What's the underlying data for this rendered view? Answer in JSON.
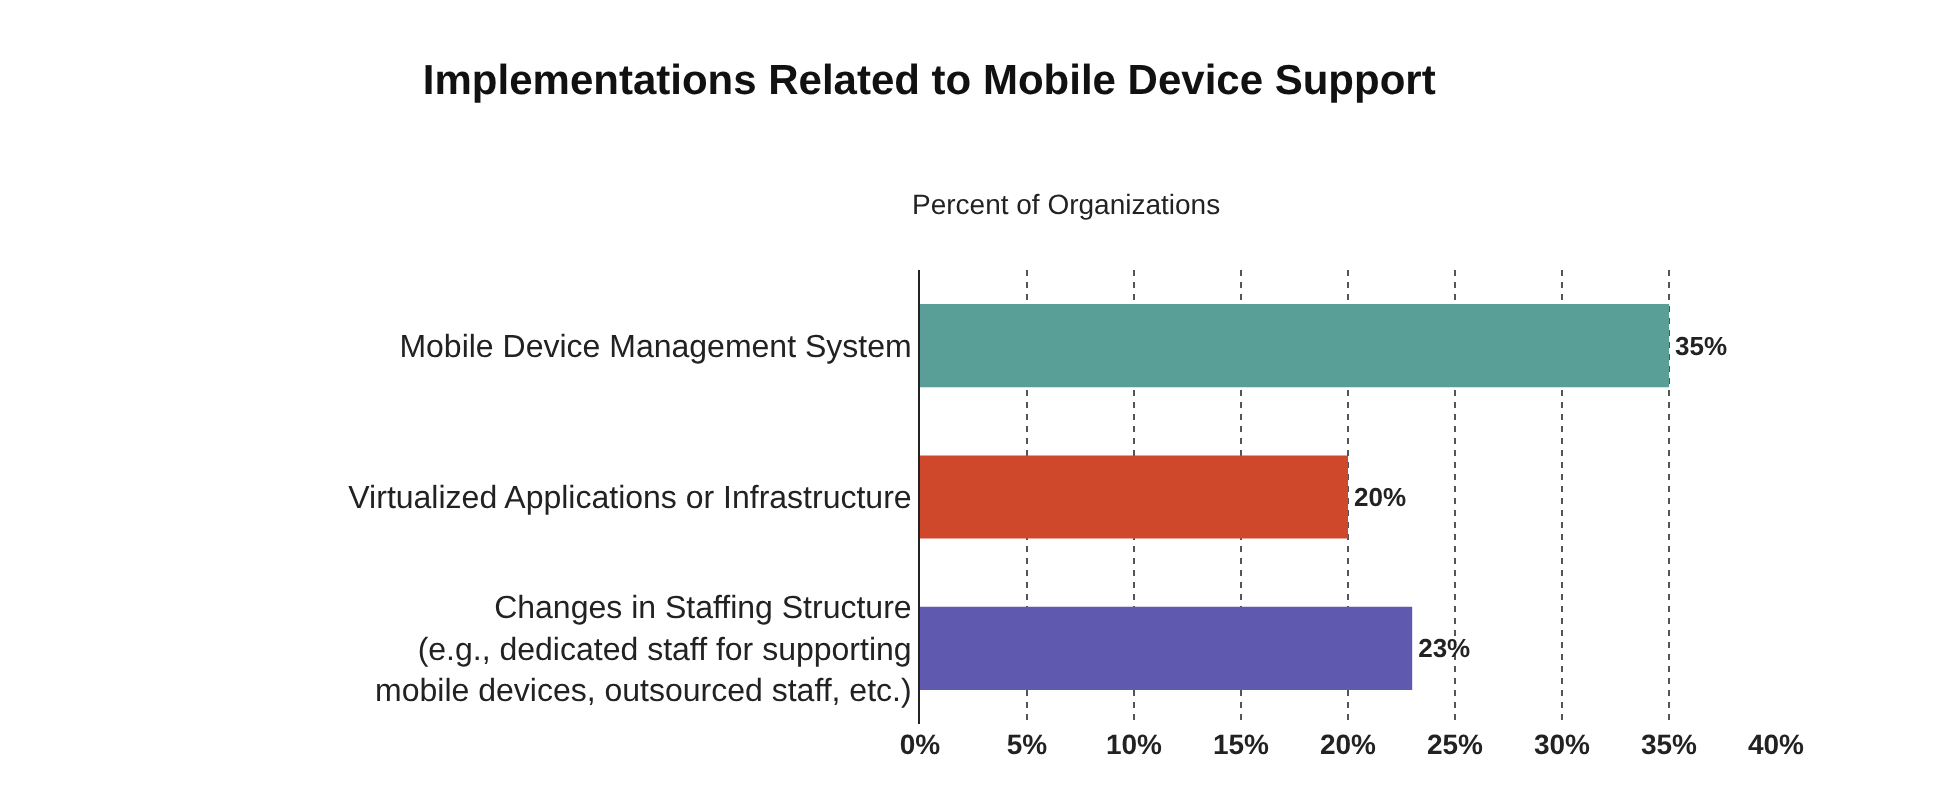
{
  "chart_data": {
    "type": "bar",
    "orientation": "horizontal",
    "title": "Implementations Related to Mobile Device Support",
    "subtitle": "Percent of Organizations",
    "categories": [
      "Mobile Device Management System",
      "Virtualized Applications or Infrastructure",
      "Changes in Staffing Structure\n(e.g., dedicated staff for supporting\nmobile devices, outsourced staff, etc.)"
    ],
    "values": [
      35,
      20,
      23
    ],
    "colors": [
      "#5a9e98",
      "#d0482c",
      "#5f5ab0"
    ],
    "value_labels": [
      "35%",
      "20%",
      "23%"
    ],
    "xlim": [
      0,
      40
    ],
    "xticks": [
      {
        "value": 0,
        "label": "0%"
      },
      {
        "value": 5,
        "label": "5%"
      },
      {
        "value": 10,
        "label": "10%"
      },
      {
        "value": 15,
        "label": "15%"
      },
      {
        "value": 20,
        "label": "20%"
      },
      {
        "value": 25,
        "label": "25%"
      },
      {
        "value": 30,
        "label": "30%"
      },
      {
        "value": 35,
        "label": "35%"
      },
      {
        "value": 40,
        "label": "40%"
      }
    ],
    "grid": "x",
    "legend": false
  }
}
